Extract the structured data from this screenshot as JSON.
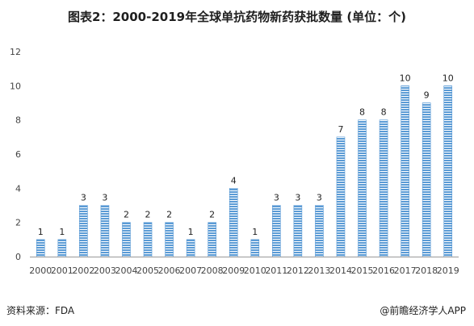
{
  "title": "图表2：2000-2019年全球单抗药物新药获批数量 (单位：个)",
  "source": "资料来源：FDA",
  "brand": "@前瞻经济学人APP",
  "chart_data": {
    "type": "bar",
    "categories": [
      "2000",
      "2001",
      "2002",
      "2003",
      "2004",
      "2005",
      "2006",
      "2007",
      "2008",
      "2009",
      "2010",
      "2011",
      "2012",
      "2013",
      "2014",
      "2015",
      "2016",
      "2017",
      "2018",
      "2019"
    ],
    "values": [
      1,
      1,
      3,
      3,
      2,
      2,
      2,
      1,
      2,
      4,
      1,
      3,
      3,
      3,
      7,
      8,
      8,
      10,
      9,
      10
    ],
    "title": "图表2：2000-2019年全球单抗药物新药获批数量 (单位：个)",
    "xlabel": "",
    "ylabel": "",
    "ylim": [
      0,
      12
    ],
    "yticks": [
      0,
      2,
      4,
      6,
      8,
      10,
      12
    ],
    "grid": false,
    "bar_color": "#5b9bd5"
  }
}
